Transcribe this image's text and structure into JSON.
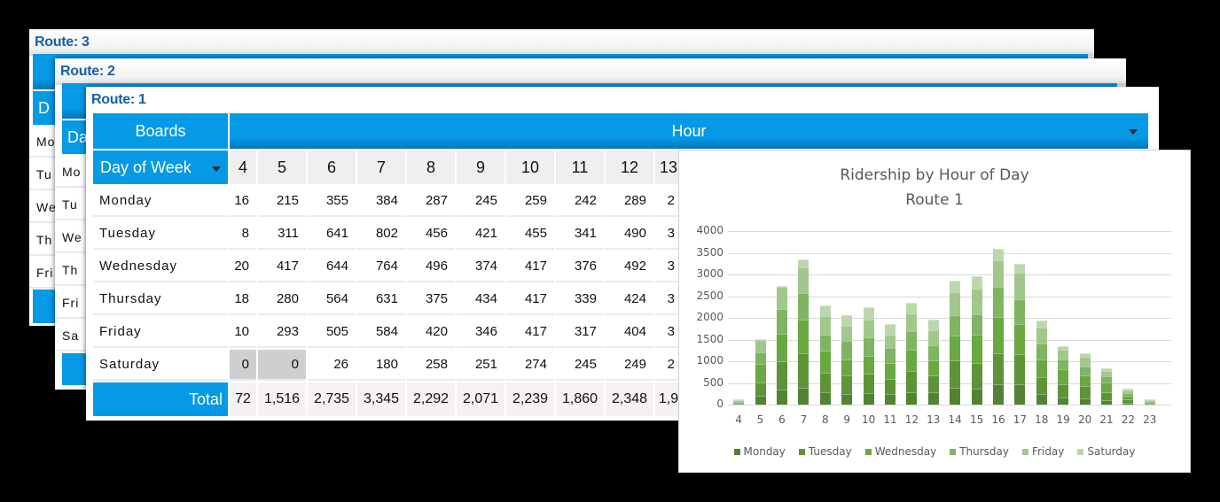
{
  "panels": [
    {
      "route_title": "Route: 3",
      "stub_labels": [
        "D",
        "Mo",
        "Tu",
        "We",
        "Th",
        "Fri"
      ]
    },
    {
      "route_title": "Route: 2",
      "stub_labels": [
        "Da",
        "Mo",
        "Tu",
        "We",
        "Th",
        "Fri",
        "Sa"
      ]
    }
  ],
  "pivot": {
    "route_title": "Route: 1",
    "measure_label": "Boards",
    "column_field_label": "Hour",
    "row_field_label": "Day of Week",
    "total_label": "Total",
    "hours": [
      "4",
      "5",
      "6",
      "7",
      "8",
      "9",
      "10",
      "11",
      "12",
      "13"
    ],
    "rows": [
      {
        "day": "Monday",
        "values": [
          "16",
          "215",
          "355",
          "384",
          "287",
          "245",
          "259",
          "242",
          "289",
          "2"
        ]
      },
      {
        "day": "Tuesday",
        "values": [
          "8",
          "311",
          "641",
          "802",
          "456",
          "421",
          "455",
          "341",
          "490",
          "3"
        ]
      },
      {
        "day": "Wednesday",
        "values": [
          "20",
          "417",
          "644",
          "764",
          "496",
          "374",
          "417",
          "376",
          "492",
          "3"
        ]
      },
      {
        "day": "Thursday",
        "values": [
          "18",
          "280",
          "564",
          "631",
          "375",
          "434",
          "417",
          "339",
          "424",
          "3"
        ]
      },
      {
        "day": "Friday",
        "values": [
          "10",
          "293",
          "505",
          "584",
          "420",
          "346",
          "417",
          "317",
          "404",
          "3"
        ]
      },
      {
        "day": "Saturday",
        "values": [
          "0",
          "0",
          "26",
          "180",
          "258",
          "251",
          "274",
          "245",
          "249",
          "2"
        ]
      }
    ],
    "totals": [
      "72",
      "1,516",
      "2,735",
      "3,345",
      "2,292",
      "2,071",
      "2,239",
      "1,860",
      "2,348",
      "1,9"
    ]
  },
  "chart_data": {
    "type": "bar",
    "stacked": true,
    "title": "Ridership by Hour of Day",
    "subtitle": "Route 1",
    "xlabel": "",
    "ylabel": "",
    "ylim": [
      0,
      4000
    ],
    "yticks": [
      "0",
      "500",
      "1000",
      "1500",
      "2000",
      "2500",
      "3000",
      "3500",
      "4000"
    ],
    "grid": true,
    "legend_position": "bottom",
    "categories": [
      "4",
      "5",
      "6",
      "7",
      "8",
      "9",
      "10",
      "11",
      "12",
      "13",
      "14",
      "15",
      "16",
      "17",
      "18",
      "19",
      "20",
      "21",
      "22",
      "23"
    ],
    "series": [
      {
        "name": "Monday",
        "color": "#548235",
        "values": [
          16,
          215,
          355,
          384,
          287,
          245,
          259,
          242,
          289,
          285,
          380,
          360,
          470,
          460,
          240,
          170,
          150,
          100,
          40,
          0
        ]
      },
      {
        "name": "Tuesday",
        "color": "#5e9438",
        "values": [
          8,
          311,
          641,
          802,
          456,
          421,
          455,
          341,
          490,
          390,
          650,
          600,
          720,
          700,
          390,
          300,
          270,
          190,
          90,
          0
        ]
      },
      {
        "name": "Wednesday",
        "color": "#6aa842",
        "values": [
          20,
          417,
          644,
          764,
          496,
          374,
          417,
          376,
          492,
          350,
          560,
          650,
          830,
          700,
          420,
          340,
          250,
          220,
          80,
          0
        ]
      },
      {
        "name": "Thursday",
        "color": "#7fb463",
        "values": [
          18,
          280,
          564,
          631,
          375,
          434,
          417,
          339,
          424,
          350,
          470,
          480,
          700,
          560,
          350,
          230,
          210,
          150,
          60,
          0
        ]
      },
      {
        "name": "Friday",
        "color": "#a2c78c",
        "values": [
          10,
          293,
          505,
          584,
          420,
          346,
          417,
          317,
          404,
          330,
          530,
          580,
          610,
          620,
          380,
          230,
          220,
          110,
          60,
          0
        ]
      },
      {
        "name": "Saturday",
        "color": "#bcd7ad",
        "values": [
          0,
          0,
          26,
          180,
          258,
          251,
          274,
          245,
          249,
          265,
          260,
          290,
          260,
          210,
          150,
          80,
          80,
          60,
          30,
          20
        ]
      }
    ]
  }
}
